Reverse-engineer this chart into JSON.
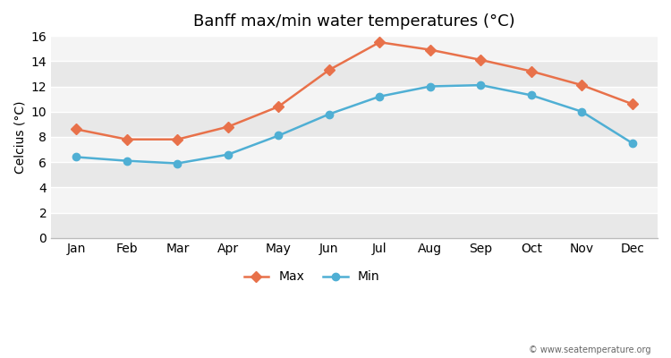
{
  "months": [
    "Jan",
    "Feb",
    "Mar",
    "Apr",
    "May",
    "Jun",
    "Jul",
    "Aug",
    "Sep",
    "Oct",
    "Nov",
    "Dec"
  ],
  "max_temps": [
    8.6,
    7.8,
    7.8,
    8.8,
    10.4,
    13.3,
    15.5,
    14.9,
    14.1,
    13.2,
    12.1,
    10.6
  ],
  "min_temps": [
    6.4,
    6.1,
    5.9,
    6.6,
    8.1,
    9.8,
    11.2,
    12.0,
    12.1,
    11.3,
    10.0,
    7.5
  ],
  "max_color": "#e8714a",
  "min_color": "#4fafd4",
  "title": "Banff max/min water temperatures (°C)",
  "ylabel": "Celcius (°C)",
  "ylim": [
    0,
    16
  ],
  "yticks": [
    0,
    2,
    4,
    6,
    8,
    10,
    12,
    14,
    16
  ],
  "band_colors": [
    "#e8e8e8",
    "#f4f4f4"
  ],
  "fig_bg_color": "#ffffff",
  "legend_labels": [
    "Max",
    "Min"
  ],
  "watermark": "© www.seatemperature.org",
  "title_fontsize": 13,
  "axis_fontsize": 10,
  "tick_fontsize": 10
}
